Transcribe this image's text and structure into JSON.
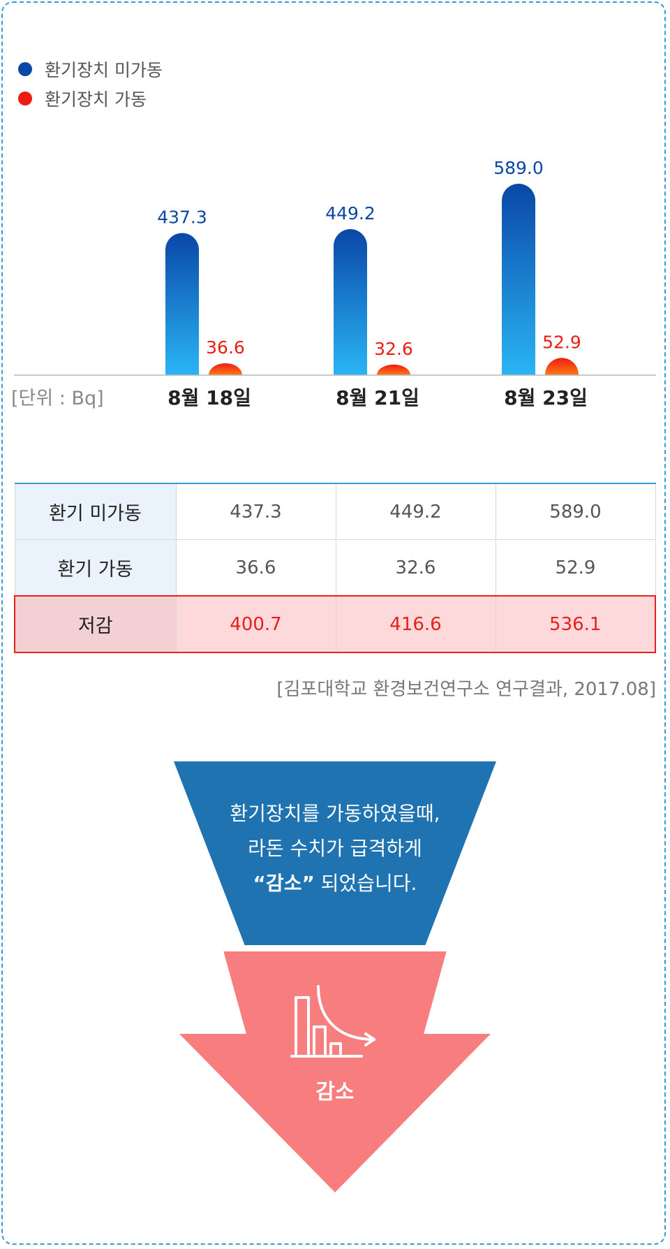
{
  "legend": [
    {
      "label": "환기장치 미가동",
      "color": "#0a47a6"
    },
    {
      "label": "환기장치 가동",
      "color": "#ee1c10"
    }
  ],
  "unit_label": "[단위 : Bq]",
  "chart_data": {
    "type": "bar",
    "categories": [
      "8월 18일",
      "8월 21일",
      "8월 23일"
    ],
    "series": [
      {
        "name": "환기장치 미가동",
        "values": [
          437.3,
          449.2,
          589.0
        ],
        "labels": [
          "437.3",
          "449.2",
          "589.0"
        ],
        "color": "#0a47a6"
      },
      {
        "name": "환기장치 가동",
        "values": [
          36.6,
          32.6,
          52.9
        ],
        "labels": [
          "36.6",
          "32.6",
          "52.9"
        ],
        "color": "#ee1c10"
      }
    ],
    "grid": false,
    "legend": "top-left"
  },
  "table": {
    "rows": [
      {
        "header": "환기 미가동",
        "cells": [
          "437.3",
          "449.2",
          "589.0"
        ]
      },
      {
        "header": "환기 가동",
        "cells": [
          "36.6",
          "32.6",
          "52.9"
        ]
      },
      {
        "header": "저감",
        "cells": [
          "400.7",
          "416.6",
          "536.1"
        ]
      }
    ]
  },
  "source": "[김포대학교 환경보건연구소 연구결과, 2017.08]",
  "funnel": {
    "line1": "환기장치를 가동하였을때,",
    "line2": "라돈 수치가 급격하게",
    "line3_quoted": "“감소”",
    "line3_rest": " 되었습니다."
  },
  "arrow": {
    "label": "감소",
    "icon": "decrease-chart-icon"
  }
}
